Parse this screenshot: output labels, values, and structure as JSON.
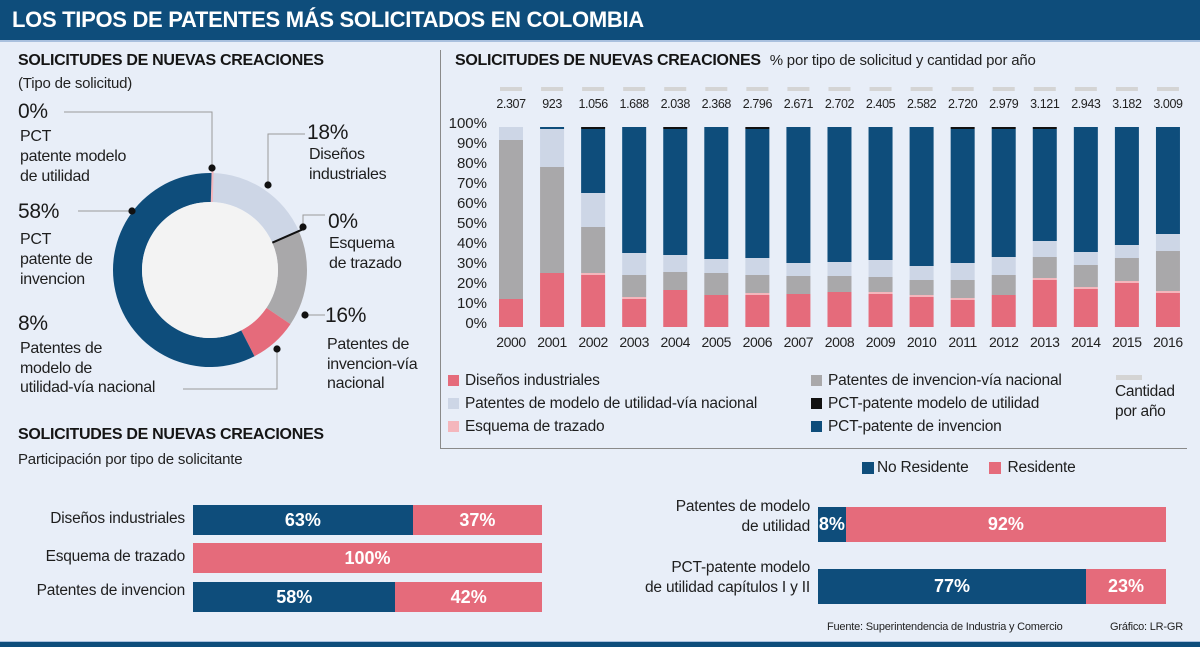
{
  "header": {
    "title": "LOS TIPOS DE PATENTES MÁS SOLICITADOS EN COLOMBIA"
  },
  "colors": {
    "brand_dark_blue": "#0e4d7b",
    "pink": "#e56b7b",
    "light_pink": "#f4b6bc",
    "gray": "#a9a8aa",
    "light_blue": "#cdd6e6",
    "black": "#111111",
    "total_marker": "#d4d4d4",
    "background": "#e8eef8"
  },
  "chart_data": [
    {
      "type": "pie",
      "variant": "donut",
      "title": "SOLICITUDES DE NUEVAS CREACIONES",
      "subtitle": "(Tipo de solicitud)",
      "slices": [
        {
          "key": "pct-modelo-utilidad",
          "display": "0%",
          "value": 0,
          "color": "#f4b6bc",
          "lines": [
            "PCT",
            "patente modelo",
            "de utilidad"
          ]
        },
        {
          "key": "disenos-industriales",
          "display": "18%",
          "value": 18,
          "color": "#cdd6e6",
          "lines": [
            "Diseños",
            "industriales"
          ]
        },
        {
          "key": "esquema-trazado",
          "display": "0%",
          "value": 0,
          "color": "#111111",
          "lines": [
            "Esquema",
            "de trazado"
          ]
        },
        {
          "key": "invencion-via-nacional",
          "display": "16%",
          "value": 16,
          "color": "#a9a8aa",
          "lines": [
            "Patentes de",
            "invencion-vía",
            "nacional"
          ]
        },
        {
          "key": "modelo-utilidad-via-nacional",
          "display": "8%",
          "value": 8,
          "color": "#e56b7b",
          "lines": [
            "Patentes de",
            "modelo de",
            "utilidad-vía nacional"
          ]
        },
        {
          "key": "pct-invencion",
          "display": "58%",
          "value": 58,
          "color": "#0e4d7b",
          "lines": [
            "PCT",
            "patente de",
            "invencion"
          ]
        }
      ]
    },
    {
      "type": "bar",
      "stacked": true,
      "title": "SOLICITUDES DE NUEVAS CREACIONES",
      "subtitle": "% por tipo de solicitud y cantidad por año",
      "xlabel": "",
      "ylabel": "",
      "ylim": [
        0,
        100
      ],
      "yticks": [
        0,
        10,
        20,
        30,
        40,
        50,
        60,
        70,
        80,
        90,
        100
      ],
      "ytick_labels": [
        "0%",
        "10%",
        "20%",
        "30%",
        "40%",
        "50%",
        "60%",
        "70%",
        "80%",
        "90%",
        "100%"
      ],
      "categories": [
        "2000",
        "2001",
        "2002",
        "2003",
        "2004",
        "2005",
        "2006",
        "2007",
        "2008",
        "2009",
        "2010",
        "2011",
        "2012",
        "2013",
        "2014",
        "2015",
        "2016"
      ],
      "totals": [
        "2.307",
        "923",
        "1.056",
        "1.688",
        "2.038",
        "2.368",
        "2.796",
        "2.671",
        "2.702",
        "2.405",
        "2.582",
        "2.720",
        "2.979",
        "3.121",
        "2.943",
        "3.182",
        "3.009"
      ],
      "totals_legend": [
        "Cantidad",
        "por año"
      ],
      "series": [
        {
          "key": "disenos",
          "name": "Diseños industriales",
          "color": "#e56b7b",
          "values": [
            14,
            27,
            26,
            14,
            18.5,
            16,
            16,
            16.5,
            17.5,
            16.5,
            15,
            13.5,
            16,
            23.5,
            19,
            22,
            17
          ]
        },
        {
          "key": "esquema",
          "name": "Esquema de trazado",
          "color": "#f4b6bc",
          "values": [
            0,
            0,
            1,
            1,
            0,
            0,
            1,
            0,
            0,
            1,
            1,
            1,
            0,
            1,
            1,
            1,
            1
          ]
        },
        {
          "key": "invencion-nacional",
          "name": "Patentes de invencion-vía nacional",
          "color": "#a9a8aa",
          "values": [
            79.5,
            53,
            23,
            11,
            9,
            11,
            9,
            9,
            8,
            7.5,
            7.5,
            9,
            10,
            10.5,
            11,
            11.5,
            20
          ]
        },
        {
          "key": "modelo-nacional",
          "name": "Patentes de modelo de utilidad-vía nacional",
          "color": "#cdd6e6",
          "values": [
            6.5,
            19,
            17,
            11,
            8.5,
            7,
            8.5,
            6.5,
            7,
            8.5,
            7,
            8.5,
            9,
            8,
            6.5,
            6.5,
            8.5
          ]
        },
        {
          "key": "pct-invencion",
          "name": "PCT-patente de invencion",
          "color": "#0e4d7b",
          "values": [
            0,
            1,
            32,
            63,
            63,
            66,
            64.5,
            68,
            67.5,
            66.5,
            69.5,
            67,
            64,
            56,
            62.5,
            59,
            53.5
          ]
        },
        {
          "key": "pct-modelo",
          "name": "PCT-patente modelo de utilidad",
          "color": "#111111",
          "values": [
            0,
            0,
            1,
            0,
            1,
            0,
            1,
            0,
            0,
            0,
            0,
            1,
            1,
            1,
            0,
            0,
            0
          ]
        }
      ],
      "legend": {
        "col1": [
          {
            "name": "Diseños industriales",
            "color": "#e56b7b"
          },
          {
            "name": "Patentes de modelo de utilidad-vía nacional",
            "color": "#cdd6e6"
          },
          {
            "name": "Esquema de trazado",
            "color": "#f4b6bc"
          }
        ],
        "col2": [
          {
            "name": "Patentes de invencion-vía nacional",
            "color": "#a9a8aa"
          },
          {
            "name": "PCT-patente modelo de utilidad",
            "color": "#111111"
          },
          {
            "name": "PCT-patente de invencion",
            "color": "#0e4d7b"
          }
        ]
      }
    },
    {
      "type": "bar",
      "orientation": "horizontal",
      "stacked": true,
      "title": "SOLICITUDES DE NUEVAS CREACIONES",
      "subtitle": "Participación por tipo de solicitante",
      "legend": [
        {
          "name": "No Residente",
          "color": "#0e4d7b"
        },
        {
          "name": "Residente",
          "color": "#e56b7b"
        }
      ],
      "rows": [
        {
          "label": [
            "Diseños industriales"
          ],
          "no_residente": 63,
          "residente": 37,
          "no_residente_text": "63%",
          "residente_text": "37%"
        },
        {
          "label": [
            "Esquema de trazado"
          ],
          "no_residente": 0,
          "residente": 100,
          "no_residente_text": "",
          "residente_text": "100%"
        },
        {
          "label": [
            "Patentes de invencion"
          ],
          "no_residente": 58,
          "residente": 42,
          "no_residente_text": "58%",
          "residente_text": "42%"
        },
        {
          "label": [
            "Patentes de modelo",
            "de utilidad"
          ],
          "no_residente": 8,
          "residente": 92,
          "no_residente_text": "8%",
          "residente_text": "92%"
        },
        {
          "label": [
            "PCT-patente modelo",
            "de utilidad capítulos I y II"
          ],
          "no_residente": 77,
          "residente": 23,
          "no_residente_text": "77%",
          "residente_text": "23%"
        }
      ]
    }
  ],
  "footer": {
    "source": "Fuente: Superintendencia de Industria y Comercio",
    "credit": "Gráfico: LR-GR"
  }
}
